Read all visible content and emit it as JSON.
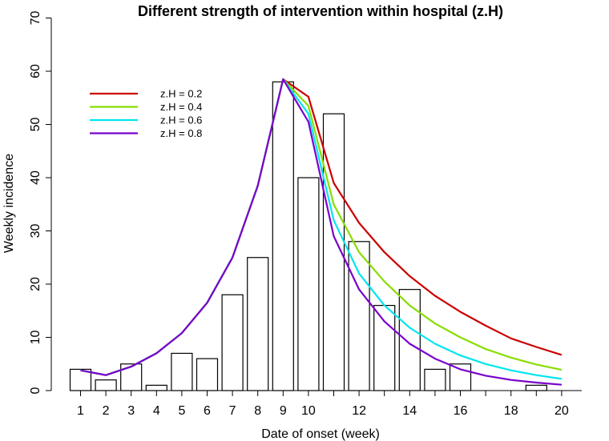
{
  "chart_data": {
    "type": "bar",
    "title": "Different strength of intervention within hospital (z.H)",
    "xlabel": "Date of onset (week)",
    "ylabel": "Weekly incidence",
    "xlim": [
      0.5,
      20.5
    ],
    "ylim": [
      0,
      70
    ],
    "x_tick_labels": [
      "1",
      "2",
      "3",
      "4",
      "5",
      "6",
      "7",
      "8",
      "9",
      "10",
      "12",
      "14",
      "16",
      "18",
      "20"
    ],
    "y_tick_labels": [
      "0",
      "10",
      "20",
      "30",
      "40",
      "50",
      "60",
      "70"
    ],
    "bars": {
      "x": [
        1,
        2,
        3,
        4,
        5,
        6,
        7,
        8,
        9,
        10,
        11,
        12,
        13,
        14,
        15,
        16,
        17,
        18,
        19,
        20
      ],
      "values": [
        4,
        2,
        5,
        1,
        7,
        6,
        18,
        25,
        58,
        40,
        52,
        28,
        16,
        19,
        4,
        5,
        0,
        0,
        1,
        0
      ],
      "fill": "#ffffff",
      "stroke": "#000000"
    },
    "series": [
      {
        "name": "z.H = 0.2",
        "color": "#cc0000",
        "x": [
          1,
          2,
          3,
          4,
          5,
          6,
          7,
          8,
          9,
          10,
          11,
          12,
          13,
          14,
          15,
          16,
          17,
          18,
          19,
          20
        ],
        "values": [
          3.8,
          2.9,
          4.5,
          7.0,
          10.8,
          16.5,
          25.0,
          38.5,
          58.5,
          55.2,
          39.0,
          31.5,
          26.0,
          21.5,
          17.8,
          14.8,
          12.2,
          9.8,
          8.2,
          6.7
        ]
      },
      {
        "name": "z.H = 0.4",
        "color": "#88dd00",
        "x": [
          1,
          2,
          3,
          4,
          5,
          6,
          7,
          8,
          9,
          10,
          11,
          12,
          13,
          14,
          15,
          16,
          17,
          18,
          19,
          20
        ],
        "values": [
          3.8,
          2.9,
          4.5,
          7.0,
          10.8,
          16.5,
          25.0,
          38.5,
          58.5,
          53.5,
          35.0,
          26.0,
          20.5,
          16.0,
          12.6,
          10.0,
          7.8,
          6.2,
          4.9,
          3.9
        ]
      },
      {
        "name": "z.H = 0.6",
        "color": "#00e5ee",
        "x": [
          1,
          2,
          3,
          4,
          5,
          6,
          7,
          8,
          9,
          10,
          11,
          12,
          13,
          14,
          15,
          16,
          17,
          18,
          19,
          20
        ],
        "values": [
          3.8,
          2.9,
          4.5,
          7.0,
          10.8,
          16.5,
          25.0,
          38.5,
          58.5,
          52.0,
          32.0,
          22.0,
          16.0,
          11.8,
          8.8,
          6.6,
          5.0,
          3.8,
          2.9,
          2.2
        ]
      },
      {
        "name": "z.H = 0.8",
        "color": "#7a00cc",
        "x": [
          1,
          2,
          3,
          4,
          5,
          6,
          7,
          8,
          9,
          10,
          11,
          12,
          13,
          14,
          15,
          16,
          17,
          18,
          19,
          20
        ],
        "values": [
          3.8,
          2.9,
          4.5,
          7.0,
          10.8,
          16.5,
          25.0,
          38.5,
          58.5,
          50.5,
          29.0,
          19.0,
          13.0,
          8.8,
          6.0,
          4.0,
          2.8,
          2.0,
          1.5,
          1.1
        ]
      }
    ],
    "legend": {
      "placement": "top-left"
    }
  }
}
